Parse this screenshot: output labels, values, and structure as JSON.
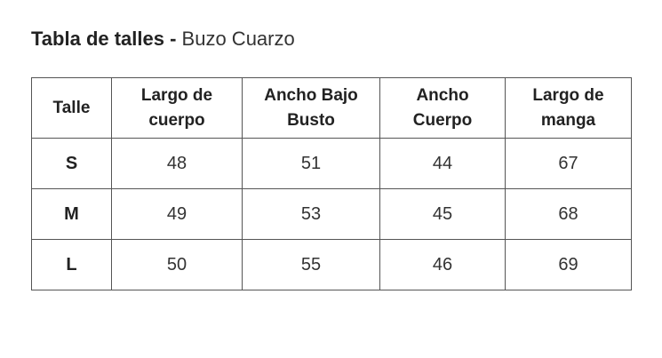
{
  "title": {
    "bold": "Tabla de talles -",
    "rest": "Buzo Cuarzo"
  },
  "table": {
    "header": [
      "Talle",
      "Largo de cuerpo",
      "Ancho Bajo Busto",
      "Ancho Cuerpo",
      "Largo de manga"
    ],
    "rows": [
      [
        "S",
        48,
        51,
        44,
        67
      ],
      [
        "M",
        49,
        53,
        45,
        68
      ],
      [
        "L",
        50,
        55,
        46,
        69
      ]
    ]
  }
}
